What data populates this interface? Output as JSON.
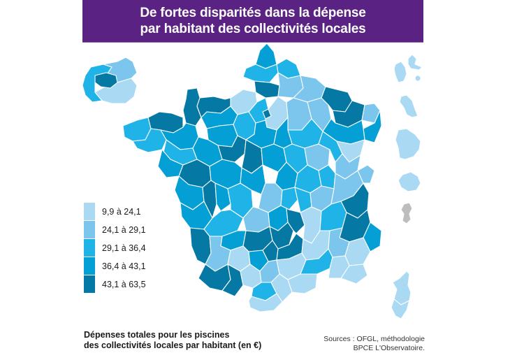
{
  "header": {
    "title_line1": "De fortes disparités dans la dépense",
    "title_line2": "par habitant des collectivités locales"
  },
  "legend": {
    "items": [
      {
        "label": "9,9 à 24,1",
        "color": "#a9d9f3"
      },
      {
        "label": "24,1 à 29,1",
        "color": "#7cc6ee"
      },
      {
        "label": "29,1 à 36,4",
        "color": "#1fb3e8"
      },
      {
        "label": "36,4 à 43,1",
        "color": "#039fd5"
      },
      {
        "label": "43,1 à 63,5",
        "color": "#0579a3"
      }
    ],
    "no_data_color": "#bdbdbd"
  },
  "caption": {
    "line1": "Dépenses totales pour les piscines",
    "line2": "des collectivités locales par habitant (en €)"
  },
  "sources": {
    "line1": "Sources : OFGL, méthodologie",
    "line2": "BPCE L'Observatoire."
  },
  "colors": {
    "header_bg": "#5a2282",
    "header_text": "#ffffff"
  }
}
